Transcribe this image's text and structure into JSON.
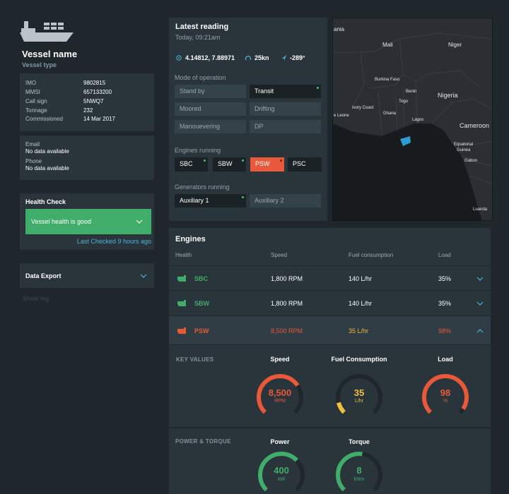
{
  "vessel": {
    "name": "Vessel name",
    "type": "Vessel type",
    "details": [
      {
        "label": "IMO",
        "value": "9802815"
      },
      {
        "label": "MMSI",
        "value": "657133200"
      },
      {
        "label": "Call sign",
        "value": "5NWQ7"
      },
      {
        "label": "Tonnage",
        "value": "232"
      },
      {
        "label": "Commissioned",
        "value": "14 Mar 2017"
      }
    ],
    "contact": [
      {
        "label": "Email",
        "value": "No data available"
      },
      {
        "label": "Phone",
        "value": "No data available"
      }
    ]
  },
  "health": {
    "title": "Health Check",
    "status": "Vessel health is good",
    "last_checked": "Last Checked 9 hours ago"
  },
  "data_export": {
    "title": "Data Export",
    "show_log": "Show log"
  },
  "latest": {
    "title": "Latest reading",
    "time": "Today, 09:21am",
    "position": "4.14812, 7.88971",
    "speed": "25kn",
    "heading": "-289°",
    "mode_title": "Mode of operation",
    "modes": [
      "Stand by",
      "Transit",
      "Moored",
      "Drifting",
      "Manouevering",
      "DP"
    ],
    "engines_title": "Engines running",
    "engines": [
      "SBC",
      "SBW",
      "PSW",
      "PSC"
    ],
    "generators_title": "Generators running",
    "generators": [
      "Auxiliary 1",
      "Auxiliary 2"
    ]
  },
  "map": {
    "labels": [
      "ania",
      "Mali",
      "Niger",
      "Burkina Faso",
      "Benin",
      "Nigeria",
      "e Leone",
      "Ivory Coast",
      "Togo",
      "Ghana",
      "Lagos",
      "Cameroon",
      "Equatorial",
      "Guinea",
      "Gabon",
      "Luanda"
    ]
  },
  "engines": {
    "title": "Engines",
    "headers": [
      "Health",
      "Speed",
      "Fuel consumption",
      "Load"
    ],
    "rows": [
      {
        "name": "SBC",
        "speed": "1,800 RPM",
        "fuel": "140 L/hr",
        "load": "35%"
      },
      {
        "name": "SBW",
        "speed": "1,800 RPM",
        "fuel": "140 L/hr",
        "load": "35%"
      },
      {
        "name": "PSW",
        "speed": "8,500 RPM",
        "fuel": "35 L/hr",
        "load": "98%"
      }
    ],
    "key_values": {
      "title": "KEY VALUES",
      "gauges": [
        {
          "title": "Speed",
          "value": "8,500",
          "unit": "RPM"
        },
        {
          "title": "Fuel Consumption",
          "value": "35",
          "unit": "L/hr"
        },
        {
          "title": "Load",
          "value": "98",
          "unit": "%"
        }
      ]
    },
    "power_torque": {
      "title": "POWER & TORQUE",
      "gauges": [
        {
          "title": "Power",
          "value": "400",
          "unit": "kW"
        },
        {
          "title": "Torque",
          "value": "8",
          "unit": "kNm"
        }
      ]
    }
  }
}
